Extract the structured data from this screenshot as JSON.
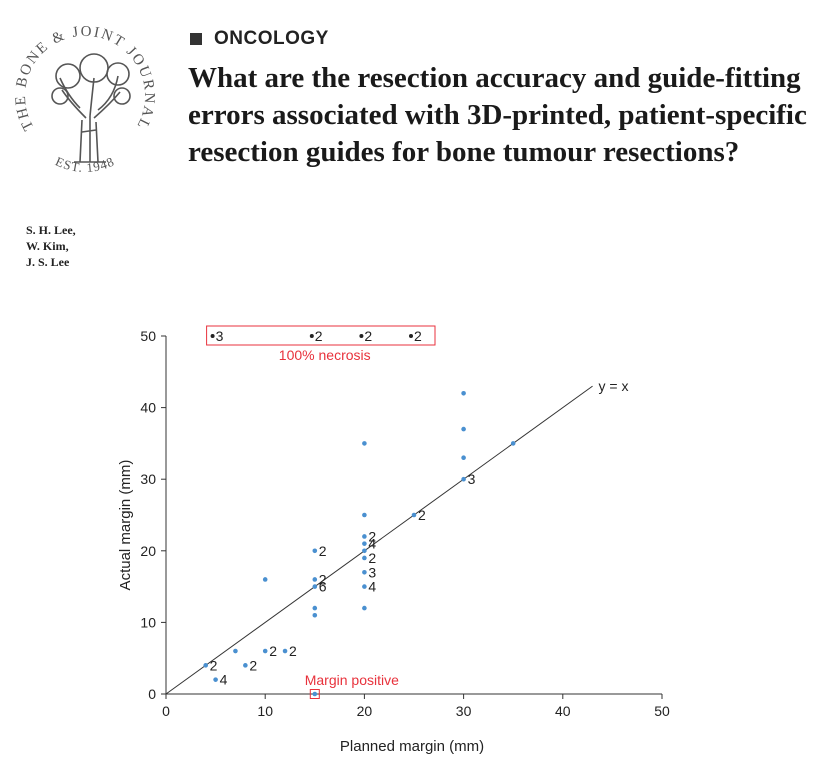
{
  "header": {
    "section_label": "ONCOLOGY",
    "title": "What are the resection accuracy and guide-fitting errors associated with 3D-printed, patient-specific resection guides for bone tumour resections?",
    "authors": [
      "S. H. Lee,",
      "W. Kim,",
      "J. S. Lee"
    ]
  },
  "logo": {
    "text_top": "THE BONE & JOINT JOURNAL",
    "text_bottom": "EST. 1948"
  },
  "colors": {
    "point": "#4a90d0",
    "annotation": "#e8323c",
    "axis": "#333333",
    "text": "#222222"
  },
  "chart_data": {
    "type": "scatter",
    "title": "",
    "xlabel": "Planned margin (mm)",
    "ylabel": "Actual margin (mm)",
    "xlim": [
      0,
      50
    ],
    "ylim": [
      0,
      50
    ],
    "xticks": [
      0,
      10,
      20,
      30,
      40,
      50
    ],
    "yticks": [
      0,
      10,
      20,
      30,
      40,
      50
    ],
    "reference_line": {
      "label": "y = x",
      "from": [
        0,
        0
      ],
      "to": [
        43,
        43
      ]
    },
    "points": [
      {
        "x": 4,
        "y": 4,
        "n": "2"
      },
      {
        "x": 5,
        "y": 2,
        "n": "4"
      },
      {
        "x": 7,
        "y": 6,
        "n": ""
      },
      {
        "x": 8,
        "y": 4,
        "n": "2"
      },
      {
        "x": 10,
        "y": 6,
        "n": "2"
      },
      {
        "x": 10,
        "y": 16,
        "n": ""
      },
      {
        "x": 12,
        "y": 6,
        "n": "2"
      },
      {
        "x": 15,
        "y": 20,
        "n": "2"
      },
      {
        "x": 15,
        "y": 16,
        "n": "2"
      },
      {
        "x": 15,
        "y": 15,
        "n": "6"
      },
      {
        "x": 15,
        "y": 12,
        "n": ""
      },
      {
        "x": 15,
        "y": 11,
        "n": ""
      },
      {
        "x": 15,
        "y": 0,
        "n": ""
      },
      {
        "x": 20,
        "y": 35,
        "n": ""
      },
      {
        "x": 20,
        "y": 25,
        "n": ""
      },
      {
        "x": 20,
        "y": 22,
        "n": "2"
      },
      {
        "x": 20,
        "y": 21,
        "n": "4"
      },
      {
        "x": 20,
        "y": 20,
        "n": ""
      },
      {
        "x": 20,
        "y": 19,
        "n": "2"
      },
      {
        "x": 20,
        "y": 17,
        "n": "3"
      },
      {
        "x": 20,
        "y": 15,
        "n": "4"
      },
      {
        "x": 20,
        "y": 12,
        "n": ""
      },
      {
        "x": 25,
        "y": 25,
        "n": "2"
      },
      {
        "x": 30,
        "y": 42,
        "n": ""
      },
      {
        "x": 30,
        "y": 37,
        "n": ""
      },
      {
        "x": 30,
        "y": 33,
        "n": ""
      },
      {
        "x": 30,
        "y": 30,
        "n": "3"
      },
      {
        "x": 35,
        "y": 35,
        "n": ""
      }
    ],
    "necrosis_points": [
      {
        "x": 5,
        "y": 50,
        "n": "3"
      },
      {
        "x": 15,
        "y": 50,
        "n": "2"
      },
      {
        "x": 20,
        "y": 50,
        "n": "2"
      },
      {
        "x": 25,
        "y": 50,
        "n": "2"
      }
    ],
    "annotations": {
      "necrosis_label": "100% necrosis",
      "margin_positive_label": "Margin positive",
      "margin_positive_point": {
        "x": 15,
        "y": 0
      }
    }
  }
}
